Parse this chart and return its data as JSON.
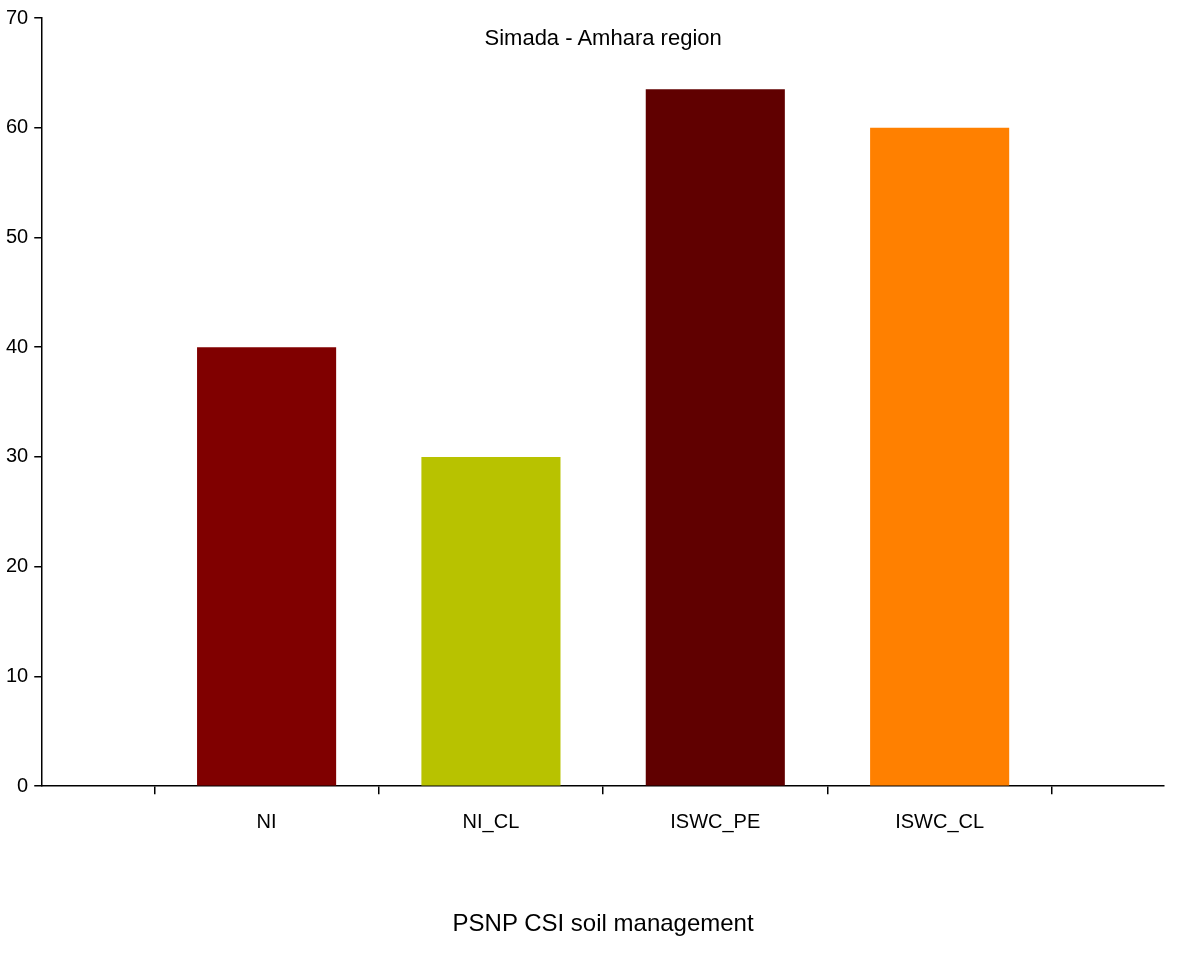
{
  "chart_data": {
    "type": "bar",
    "title": "Simada - Amhara region",
    "xlabel": "PSNP CSI soil management",
    "categories": [
      null,
      "NI",
      "NI_CL",
      "ISWC_PE",
      "ISWC_CL",
      null
    ],
    "values": [
      null,
      40,
      30,
      63.5,
      60,
      null
    ],
    "colors": [
      "#800000",
      "#800000",
      "#b8c200",
      "#600000",
      "#ff8000",
      "#ff8000"
    ],
    "ylim": [
      0,
      70
    ],
    "yticks": [
      0,
      10,
      20,
      30,
      40,
      50,
      60,
      70
    ],
    "grid": false,
    "legend": false
  }
}
